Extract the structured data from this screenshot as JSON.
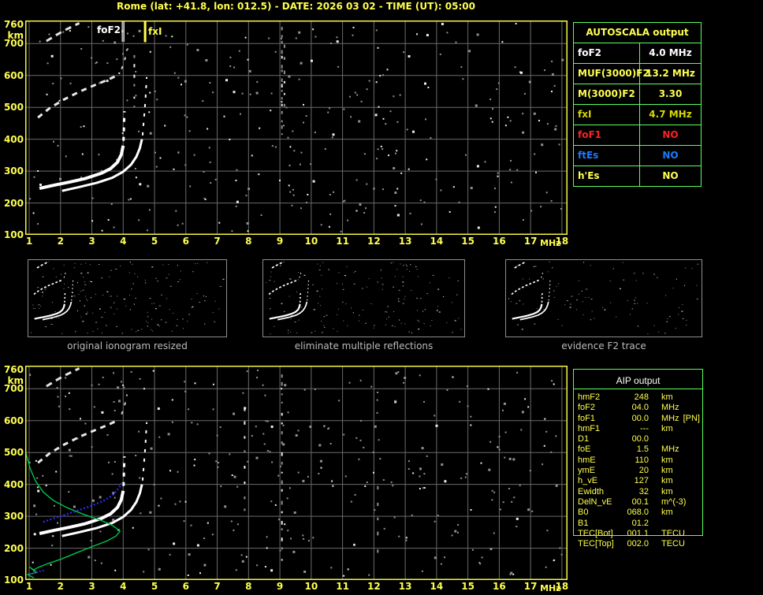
{
  "title": "Rome (lat: +41.8, lon: 012.5) - DATE: 2026 03 02 - TIME (UT): 05:00",
  "axes": {
    "km_label": "km",
    "mhz_label": "MHz",
    "x_ticks": [
      1,
      2,
      3,
      4,
      5,
      6,
      7,
      8,
      9,
      10,
      11,
      12,
      13,
      14,
      15,
      16,
      17,
      18
    ],
    "y_ticks": [
      760,
      700,
      600,
      500,
      400,
      300,
      200,
      100
    ]
  },
  "top_ionogram": {
    "foF2_label": "foF2",
    "fxI_label": "fxI"
  },
  "autoscala": {
    "title": "AUTOSCALA output",
    "rows": [
      {
        "param": "foF2",
        "value": "4.0 MHz",
        "color": "#ffffff"
      },
      {
        "param": "MUF(3000)F2",
        "value": "13.2 MHz",
        "color": "#ffff4f"
      },
      {
        "param": "M(3000)F2",
        "value": "3.30",
        "color": "#ffff4f"
      },
      {
        "param": "fxI",
        "value": "4.7 MHz",
        "color": "#d8d800"
      },
      {
        "param": "foF1",
        "value": "NO",
        "color": "#ff2020"
      },
      {
        "param": "ftEs",
        "value": "NO",
        "color": "#1a7cff"
      },
      {
        "param": "h'Es",
        "value": "NO",
        "color": "#ffff4f"
      }
    ]
  },
  "panels": [
    {
      "caption": "original ionogram resized"
    },
    {
      "caption": "eliminate multiple reflections"
    },
    {
      "caption": "evidence F2 trace"
    }
  ],
  "aip": {
    "title": "AIP output",
    "rows": [
      {
        "param": "hmF2",
        "value": "248",
        "unit": "km",
        "note": ""
      },
      {
        "param": "foF2",
        "value": "04.0",
        "unit": "MHz",
        "note": ""
      },
      {
        "param": "foF1",
        "value": "00.0",
        "unit": "MHz",
        "note": "[PN]"
      },
      {
        "param": "hmF1",
        "value": "---",
        "unit": "km",
        "note": ""
      },
      {
        "param": "D1",
        "value": "00.0",
        "unit": "",
        "note": ""
      },
      {
        "param": "foE",
        "value": "1.5",
        "unit": "MHz",
        "note": ""
      },
      {
        "param": "hmE",
        "value": "110",
        "unit": "km",
        "note": ""
      },
      {
        "param": "ymE",
        "value": "20",
        "unit": "km",
        "note": ""
      },
      {
        "param": "h_vE",
        "value": "127",
        "unit": "km",
        "note": ""
      },
      {
        "param": "Ewidth",
        "value": "32",
        "unit": "km",
        "note": ""
      },
      {
        "param": "DelN_vE",
        "value": "00.1",
        "unit": "m^(-3)",
        "note": ""
      },
      {
        "param": "B0",
        "value": "068.0",
        "unit": "km",
        "note": ""
      },
      {
        "param": "B1",
        "value": "01.2",
        "unit": "",
        "note": ""
      },
      {
        "param": "TEC[Bot]",
        "value": "001.1",
        "unit": "TECU",
        "note": ""
      },
      {
        "param": "TEC[Top]",
        "value": "002.0",
        "unit": "TECU",
        "note": ""
      }
    ]
  },
  "colors": {
    "yellow": "#ffff4f",
    "grid": "#6a6a6a",
    "table_green": "#5cff5c",
    "profile_green": "#00c24a",
    "restored_blue": "#2b2be0",
    "noise_gray": "#909090",
    "noise_white": "#ececec",
    "border_yellow": "#f5f542"
  },
  "chart_data": [
    {
      "id": "top_ionogram",
      "type": "scatter",
      "title": "",
      "xlabel": "MHz",
      "ylabel": "km",
      "xlim": [
        1,
        18
      ],
      "ylim": [
        100,
        765
      ],
      "grid": true,
      "markers": {
        "foF2_MHz": 4.0,
        "fxI_MHz": 4.7
      },
      "series": [
        {
          "name": "F2 trace o-mode",
          "color": "#ffffff",
          "width": 4,
          "dash": null,
          "points": [
            [
              1.33,
              246
            ],
            [
              1.8,
              256
            ],
            [
              2.3,
              266
            ],
            [
              2.8,
              277
            ],
            [
              3.3,
              293
            ],
            [
              3.6,
              308
            ],
            [
              3.82,
              328
            ],
            [
              3.94,
              352
            ],
            [
              4.0,
              380
            ]
          ]
        },
        {
          "name": "F2 o-mode asymptote",
          "color": "#ffffff",
          "width": 3,
          "dash": [
            5,
            7
          ],
          "points": [
            [
              4.01,
              395
            ],
            [
              4.02,
              425
            ],
            [
              4.03,
              458
            ],
            [
              4.04,
              488
            ]
          ]
        },
        {
          "name": "F2 trace x-mode",
          "color": "#ffffff",
          "width": 3,
          "dash": null,
          "points": [
            [
              2.05,
              238
            ],
            [
              2.6,
              250
            ],
            [
              3.15,
              263
            ],
            [
              3.65,
              279
            ],
            [
              4.0,
              298
            ],
            [
              4.25,
              320
            ],
            [
              4.42,
              345
            ],
            [
              4.53,
              372
            ],
            [
              4.6,
              400
            ]
          ]
        },
        {
          "name": "F2 x-mode asymptote",
          "color": "#ffffff",
          "width": 2,
          "dash": [
            4,
            8
          ],
          "points": [
            [
              4.62,
              412
            ],
            [
              4.65,
              448
            ],
            [
              4.68,
              485
            ],
            [
              4.71,
              522
            ],
            [
              4.73,
              560
            ],
            [
              4.75,
              595
            ]
          ]
        },
        {
          "name": "second hop",
          "color": "#e8e8e8",
          "width": 3,
          "dash": [
            7,
            6
          ],
          "points": [
            [
              1.28,
              468
            ],
            [
              1.65,
              497
            ],
            [
              2.1,
              524
            ],
            [
              2.6,
              549
            ],
            [
              3.05,
              568
            ],
            [
              3.5,
              586
            ],
            [
              3.85,
              602
            ]
          ]
        },
        {
          "name": "second hop asymptote",
          "color": "#cccccc",
          "width": 2,
          "dash": [
            4,
            8
          ],
          "points": [
            [
              3.95,
              620
            ],
            [
              4.05,
              650
            ],
            [
              4.12,
              682
            ]
          ]
        },
        {
          "name": "third hop",
          "color": "#e0e0e0",
          "width": 3,
          "dash": [
            8,
            6
          ],
          "points": [
            [
              1.55,
              708
            ],
            [
              1.82,
              724
            ],
            [
              2.1,
              740
            ],
            [
              2.38,
              754
            ],
            [
              2.6,
              764
            ]
          ]
        }
      ]
    },
    {
      "id": "bottom_ionogram",
      "type": "scatter",
      "title": "",
      "xlabel": "MHz",
      "ylabel": "km",
      "xlim": [
        1,
        18
      ],
      "ylim": [
        100,
        765
      ],
      "grid": true,
      "includes_traces_of": "top_ionogram",
      "series": [
        {
          "name": "electron density profile",
          "color": "#00c24a",
          "width": 1.4,
          "dash": null,
          "points": [
            [
              0.9,
              497
            ],
            [
              1.03,
              450
            ],
            [
              1.2,
              411
            ],
            [
              1.45,
              376
            ],
            [
              1.78,
              349
            ],
            [
              2.21,
              327
            ],
            [
              2.71,
              307
            ],
            [
              3.21,
              290
            ],
            [
              3.59,
              275
            ],
            [
              3.79,
              262
            ],
            [
              3.9,
              253
            ],
            [
              3.77,
              238
            ],
            [
              3.49,
              223
            ],
            [
              3.04,
              206
            ],
            [
              2.53,
              186
            ],
            [
              2.03,
              166
            ],
            [
              1.58,
              151
            ],
            [
              1.28,
              139
            ],
            [
              1.13,
              131
            ],
            [
              1.01,
              141
            ],
            [
              1.26,
              124
            ],
            [
              0.95,
              117
            ],
            [
              1.15,
              107
            ]
          ]
        },
        {
          "name": "restored trace",
          "color": "#2b2be0",
          "width": 2.5,
          "dash": [
            2,
            2.5
          ],
          "points": [
            [
              1.45,
              282
            ],
            [
              1.83,
              295
            ],
            [
              2.21,
              307
            ],
            [
              2.58,
              319
            ],
            [
              2.96,
              332
            ],
            [
              3.34,
              347
            ],
            [
              3.64,
              364
            ],
            [
              3.84,
              386
            ],
            [
              3.99,
              408
            ]
          ]
        },
        {
          "name": "restored trace E region",
          "color": "#2b2be0",
          "width": 2,
          "dash": [
            2,
            2
          ],
          "points": [
            [
              1.03,
              119
            ],
            [
              1.2,
              124
            ],
            [
              1.35,
              128
            ],
            [
              1.5,
              131
            ]
          ]
        }
      ]
    }
  ]
}
